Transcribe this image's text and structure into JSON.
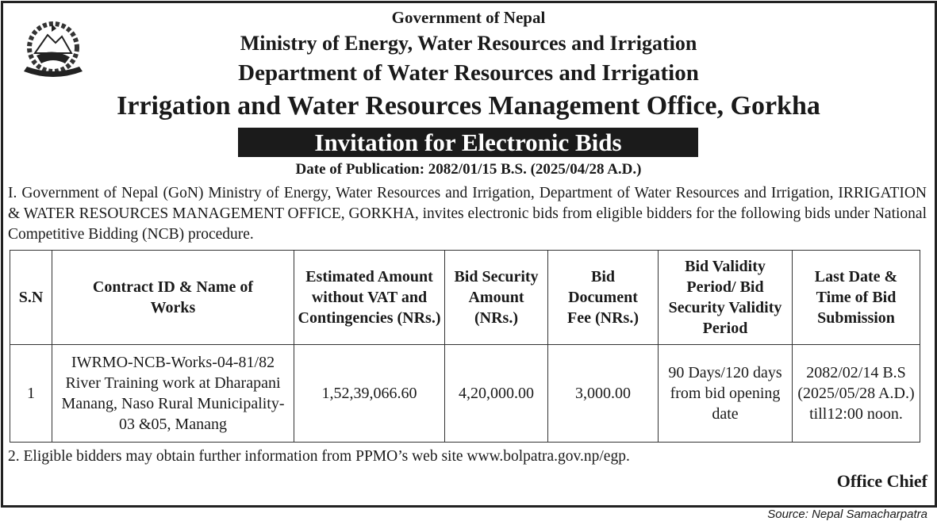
{
  "header": {
    "line1": "Government of Nepal",
    "line2": "Ministry of Energy, Water Resources and Irrigation",
    "line3": "Department of Water Resources and Irrigation",
    "line4": "Irrigation and Water Resources Management Office, Gorkha",
    "banner": "Invitation for Electronic Bids",
    "date": "Date of Publication: 2082/01/15 B.S. (2025/04/28 A.D.)"
  },
  "paragraph1": "I. Government of Nepal (GoN) Ministry of Energy, Water Resources and Irrigation, Department of Water Resources and Irrigation, IRRIGATION & WATER RESOURCES MANAGEMENT OFFICE, GORKHA, invites electronic bids from eligible bidders for the following bids under National Competitive Bidding (NCB) procedure.",
  "table": {
    "headers": [
      "S.N",
      "Contract ID & Name of Works",
      "Estimated Amount without VAT and Contingencies (NRs.)",
      "Bid Security Amount (NRs.)",
      "Bid Document Fee (NRs.)",
      "Bid Validity Period/ Bid Security Validity Period",
      "Last Date & Time of Bid Submission"
    ],
    "rows": [
      [
        "1",
        "IWRMO-NCB-Works-04-81/82 River Training work at Dharapani Manang, Naso Rural Municipality-03 &05, Manang",
        "1,52,39,066.60",
        "4,20,000.00",
        "3,000.00",
        "90 Days/120 days from bid opening date",
        "2082/02/14 B.S (2025/05/28 A.D.) till12:00 noon."
      ]
    ]
  },
  "note2": "2. Eligible bidders may obtain further information from PPMO’s web site www.bolpatra.gov.np/egp.",
  "signature": "Office Chief",
  "source": "Source: Nepal Samacharpatra"
}
